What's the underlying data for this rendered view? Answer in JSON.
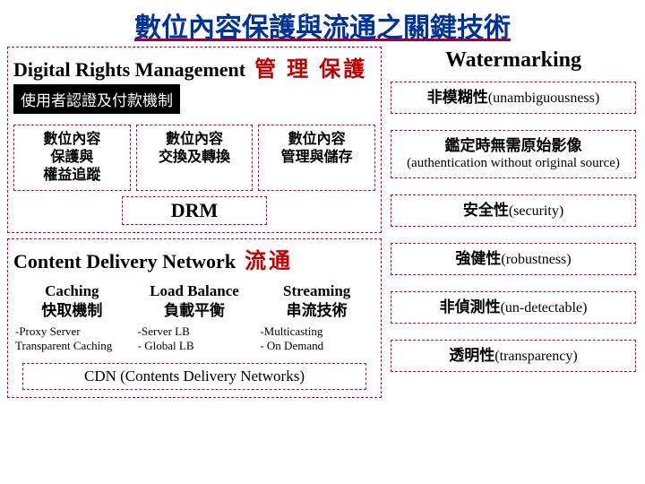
{
  "colors": {
    "title": "#003399",
    "title_underline": "#a00040",
    "border_dash": "#cc0033",
    "accent_red": "#c00000",
    "black_box_bg": "#000000",
    "black_box_fg": "#ffffff",
    "background": "#ffffff"
  },
  "title": "數位內容保護與流通之關鍵技術",
  "drm": {
    "header_en": "Digital Rights Management",
    "header_cn": "管 理 保護",
    "black_box": "使用者認證及付款機制",
    "cols": [
      "數位內容\n保護與\n權益追蹤",
      "數位內容\n交換及轉換",
      "數位內容\n管理與儲存"
    ],
    "footer": "DRM"
  },
  "cdn": {
    "header_en": "Content Delivery Network",
    "header_cn": "流通",
    "cols": [
      {
        "en": "Caching",
        "cn": "快取機制"
      },
      {
        "en": "Load Balance",
        "cn": "負載平衡"
      },
      {
        "en": "Streaming",
        "cn": "串流技術"
      }
    ],
    "subs": [
      "-Proxy Server\nTransparent Caching",
      "-Server LB\n- Global LB",
      "-Multicasting\n- On Demand"
    ],
    "footer": "CDN (Contents Delivery Networks)"
  },
  "watermark": {
    "title": "Watermarking",
    "items": [
      {
        "cn": "非模糊性",
        "en": "(unambiguousness)"
      },
      {
        "cn": "鑑定時無需原始影像",
        "en_sub": "(authentication without original source)"
      },
      {
        "cn": "安全性",
        "en": "(security)"
      },
      {
        "cn": "強健性",
        "en": "(robustness)"
      },
      {
        "cn": "非偵測性",
        "en": "(un-detectable)"
      },
      {
        "cn": "透明性",
        "en": "(transparency)"
      }
    ]
  }
}
